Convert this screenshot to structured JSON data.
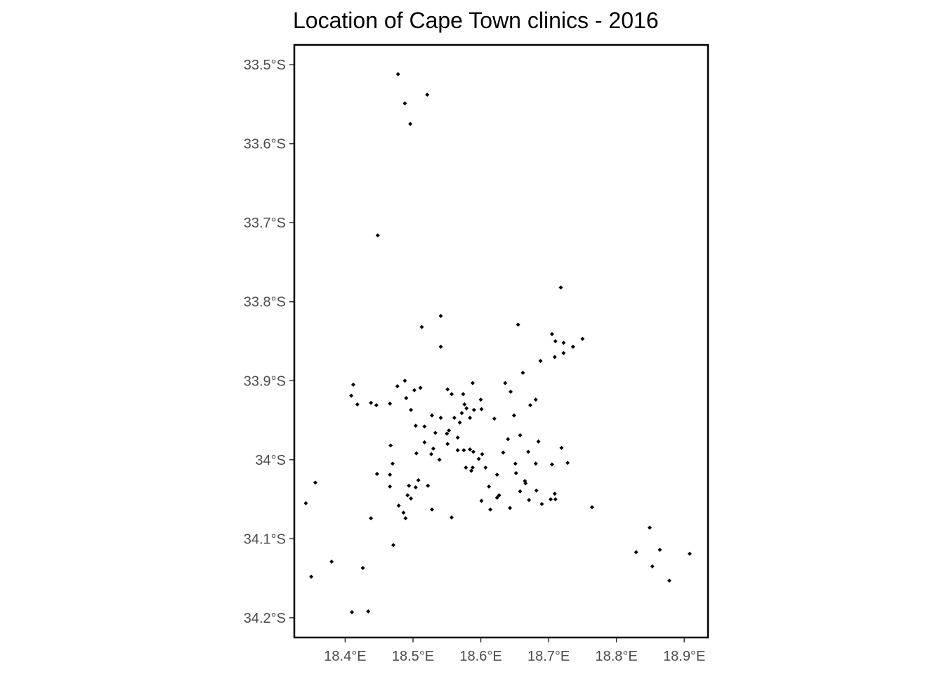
{
  "chart_data": {
    "type": "scatter",
    "title": "Location of Cape Town clinics - 2016",
    "xlabel": "",
    "ylabel": "",
    "xlim": [
      18.325,
      18.935
    ],
    "ylim": [
      -34.225,
      -33.475
    ],
    "grid": false,
    "x_ticks": [
      {
        "value": 18.4,
        "label": "18.4°E"
      },
      {
        "value": 18.5,
        "label": "18.5°E"
      },
      {
        "value": 18.6,
        "label": "18.6°E"
      },
      {
        "value": 18.7,
        "label": "18.7°E"
      },
      {
        "value": 18.8,
        "label": "18.8°E"
      },
      {
        "value": 18.9,
        "label": "18.9°E"
      }
    ],
    "y_ticks": [
      {
        "value": -33.5,
        "label": "33.5°S"
      },
      {
        "value": -33.6,
        "label": "33.6°S"
      },
      {
        "value": -33.7,
        "label": "33.7°S"
      },
      {
        "value": -33.8,
        "label": "33.8°S"
      },
      {
        "value": -33.9,
        "label": "33.9°S"
      },
      {
        "value": -34.0,
        "label": "34°S"
      },
      {
        "value": -34.1,
        "label": "34.1°S"
      },
      {
        "value": -34.2,
        "label": "34.2°S"
      }
    ],
    "points": [
      [
        18.478,
        -33.512
      ],
      [
        18.521,
        -33.538
      ],
      [
        18.488,
        -33.549
      ],
      [
        18.496,
        -33.575
      ],
      [
        18.448,
        -33.716
      ],
      [
        18.718,
        -33.782
      ],
      [
        18.541,
        -33.818
      ],
      [
        18.655,
        -33.829
      ],
      [
        18.513,
        -33.832
      ],
      [
        18.705,
        -33.841
      ],
      [
        18.71,
        -33.85
      ],
      [
        18.722,
        -33.852
      ],
      [
        18.75,
        -33.847
      ],
      [
        18.736,
        -33.857
      ],
      [
        18.541,
        -33.857
      ],
      [
        18.722,
        -33.865
      ],
      [
        18.709,
        -33.87
      ],
      [
        18.688,
        -33.875
      ],
      [
        18.662,
        -33.89
      ],
      [
        18.488,
        -33.9
      ],
      [
        18.412,
        -33.905
      ],
      [
        18.477,
        -33.907
      ],
      [
        18.511,
        -33.909
      ],
      [
        18.502,
        -33.912
      ],
      [
        18.551,
        -33.911
      ],
      [
        18.588,
        -33.903
      ],
      [
        18.636,
        -33.903
      ],
      [
        18.644,
        -33.914
      ],
      [
        18.557,
        -33.917
      ],
      [
        18.409,
        -33.919
      ],
      [
        18.49,
        -33.922
      ],
      [
        18.6,
        -33.924
      ],
      [
        18.574,
        -33.917
      ],
      [
        18.681,
        -33.924
      ],
      [
        18.418,
        -33.93
      ],
      [
        18.438,
        -33.928
      ],
      [
        18.446,
        -33.931
      ],
      [
        18.466,
        -33.929
      ],
      [
        18.576,
        -33.93
      ],
      [
        18.673,
        -33.931
      ],
      [
        18.579,
        -33.935
      ],
      [
        18.59,
        -33.937
      ],
      [
        18.601,
        -33.936
      ],
      [
        18.497,
        -33.937
      ],
      [
        18.572,
        -33.941
      ],
      [
        18.528,
        -33.944
      ],
      [
        18.541,
        -33.947
      ],
      [
        18.561,
        -33.947
      ],
      [
        18.584,
        -33.947
      ],
      [
        18.649,
        -33.944
      ],
      [
        18.62,
        -33.948
      ],
      [
        18.569,
        -33.953
      ],
      [
        18.504,
        -33.957
      ],
      [
        18.517,
        -33.958
      ],
      [
        18.553,
        -33.963
      ],
      [
        18.55,
        -33.967
      ],
      [
        18.533,
        -33.966
      ],
      [
        18.566,
        -33.972
      ],
      [
        18.64,
        -33.974
      ],
      [
        18.658,
        -33.969
      ],
      [
        18.517,
        -33.978
      ],
      [
        18.551,
        -33.98
      ],
      [
        18.685,
        -33.977
      ],
      [
        18.467,
        -33.982
      ],
      [
        18.53,
        -33.986
      ],
      [
        18.566,
        -33.988
      ],
      [
        18.575,
        -33.988
      ],
      [
        18.584,
        -33.987
      ],
      [
        18.719,
        -33.985
      ],
      [
        18.505,
        -33.992
      ],
      [
        18.527,
        -33.993
      ],
      [
        18.589,
        -33.99
      ],
      [
        18.602,
        -33.993
      ],
      [
        18.633,
        -33.991
      ],
      [
        18.67,
        -33.99
      ],
      [
        18.539,
        -34.0
      ],
      [
        18.597,
        -33.999
      ],
      [
        18.47,
        -34.005
      ],
      [
        18.651,
        -34.005
      ],
      [
        18.681,
        -34.005
      ],
      [
        18.705,
        -34.006
      ],
      [
        18.728,
        -34.004
      ],
      [
        18.588,
        -34.01
      ],
      [
        18.578,
        -34.01
      ],
      [
        18.607,
        -34.01
      ],
      [
        18.586,
        -34.014
      ],
      [
        18.447,
        -34.018
      ],
      [
        18.466,
        -34.019
      ],
      [
        18.652,
        -34.017
      ],
      [
        18.624,
        -34.019
      ],
      [
        18.356,
        -34.029
      ],
      [
        18.508,
        -34.026
      ],
      [
        18.665,
        -34.027
      ],
      [
        18.666,
        -34.03
      ],
      [
        18.522,
        -34.033
      ],
      [
        18.466,
        -34.034
      ],
      [
        18.494,
        -34.033
      ],
      [
        18.504,
        -34.035
      ],
      [
        18.612,
        -34.034
      ],
      [
        18.342,
        -34.055
      ],
      [
        18.658,
        -34.04
      ],
      [
        18.682,
        -34.039
      ],
      [
        18.492,
        -34.045
      ],
      [
        18.627,
        -34.045
      ],
      [
        18.624,
        -34.048
      ],
      [
        18.497,
        -34.049
      ],
      [
        18.709,
        -34.043
      ],
      [
        18.71,
        -34.05
      ],
      [
        18.703,
        -34.05
      ],
      [
        18.671,
        -34.051
      ],
      [
        18.601,
        -34.052
      ],
      [
        18.69,
        -34.056
      ],
      [
        18.479,
        -34.058
      ],
      [
        18.764,
        -34.06
      ],
      [
        18.528,
        -34.063
      ],
      [
        18.614,
        -34.063
      ],
      [
        18.643,
        -34.061
      ],
      [
        18.486,
        -34.067
      ],
      [
        18.489,
        -34.074
      ],
      [
        18.438,
        -34.074
      ],
      [
        18.557,
        -34.073
      ],
      [
        18.849,
        -34.086
      ],
      [
        18.471,
        -34.108
      ],
      [
        18.864,
        -34.114
      ],
      [
        18.829,
        -34.117
      ],
      [
        18.908,
        -34.119
      ],
      [
        18.38,
        -34.129
      ],
      [
        18.426,
        -34.137
      ],
      [
        18.853,
        -34.135
      ],
      [
        18.35,
        -34.148
      ],
      [
        18.878,
        -34.153
      ],
      [
        18.41,
        -34.193
      ],
      [
        18.434,
        -34.192
      ]
    ]
  }
}
